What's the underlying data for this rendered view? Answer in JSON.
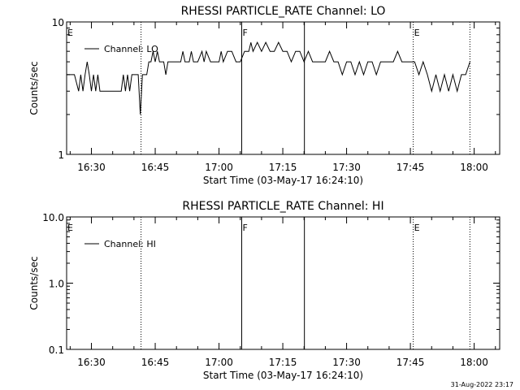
{
  "footer_stamp": "31-Aug-2022 23:17",
  "chart_data": [
    {
      "type": "line",
      "title": "RHESSI PARTICLE_RATE Channel: LO",
      "xlabel": "Start Time (03-May-17 16:24:10)",
      "ylabel": "Counts/sec",
      "yscale": "log",
      "xlim": [
        "16:24:10",
        "18:06:00"
      ],
      "ylim": [
        1,
        10
      ],
      "x_ticks": [
        "16:30",
        "16:45",
        "17:00",
        "17:15",
        "17:30",
        "17:45",
        "18:00"
      ],
      "y_ticks": [
        "1",
        "10"
      ],
      "legend": {
        "position": "top-left",
        "entries": [
          "Channel: LO"
        ]
      },
      "markers": [
        {
          "time": "16:24:10",
          "label": "E",
          "style": "dotted"
        },
        {
          "time": "16:41:40",
          "label": "",
          "style": "dotted"
        },
        {
          "time": "17:05:20",
          "label": "F",
          "style": "solid"
        },
        {
          "time": "17:20:05",
          "label": "",
          "style": "solid"
        },
        {
          "time": "17:45:40",
          "label": "E",
          "style": "dotted"
        },
        {
          "time": "17:59:00",
          "label": "",
          "style": "dotted"
        }
      ],
      "series": [
        {
          "name": "Channel: LO",
          "color": "#000000",
          "x": [
            "16:24:10",
            "16:26:00",
            "16:27:00",
            "16:27:30",
            "16:28:00",
            "16:28:30",
            "16:29:00",
            "16:29:30",
            "16:30:00",
            "16:30:30",
            "16:31:00",
            "16:31:30",
            "16:32:00",
            "16:35:00",
            "16:37:00",
            "16:37:30",
            "16:38:00",
            "16:38:30",
            "16:39:00",
            "16:39:30",
            "16:40:00",
            "16:41:00",
            "16:41:30",
            "16:42:00",
            "16:43:00",
            "16:43:30",
            "16:44:00",
            "16:44:30",
            "16:45:00",
            "16:45:30",
            "16:46:00",
            "16:47:00",
            "16:47:30",
            "16:48:00",
            "16:48:30",
            "16:50:00",
            "16:51:00",
            "16:51:30",
            "16:52:00",
            "16:53:00",
            "16:53:30",
            "16:54:00",
            "16:55:00",
            "16:56:00",
            "16:56:30",
            "16:57:00",
            "16:58:00",
            "16:59:00",
            "17:00:00",
            "17:00:30",
            "17:01:00",
            "17:02:00",
            "17:03:00",
            "17:04:00",
            "17:05:00",
            "17:06:00",
            "17:07:00",
            "17:07:30",
            "17:08:00",
            "17:09:00",
            "17:10:00",
            "17:11:00",
            "17:12:00",
            "17:13:00",
            "17:14:00",
            "17:15:00",
            "17:16:00",
            "17:17:00",
            "17:18:00",
            "17:19:00",
            "17:20:00",
            "17:21:00",
            "17:22:00",
            "17:23:00",
            "17:24:00",
            "17:25:00",
            "17:26:00",
            "17:27:00",
            "17:28:00",
            "17:29:00",
            "17:30:00",
            "17:31:00",
            "17:32:00",
            "17:33:00",
            "17:34:00",
            "17:35:00",
            "17:36:00",
            "17:37:00",
            "17:38:00",
            "17:39:00",
            "17:40:00",
            "17:41:00",
            "17:42:00",
            "17:43:00",
            "17:44:00",
            "17:45:00",
            "17:46:00",
            "17:47:00",
            "17:48:00",
            "17:49:00",
            "17:50:00",
            "17:51:00",
            "17:52:00",
            "17:53:00",
            "17:54:00",
            "17:55:00",
            "17:56:00",
            "17:57:00",
            "17:58:00",
            "17:59:00"
          ],
          "y": [
            4,
            4,
            3,
            4,
            3,
            4,
            5,
            4,
            3,
            4,
            3,
            4,
            3,
            3,
            3,
            4,
            3,
            4,
            3,
            4,
            4,
            4,
            2,
            4,
            4,
            5,
            5,
            6,
            5,
            6,
            5,
            5,
            4,
            5,
            5,
            5,
            5,
            6,
            5,
            5,
            6,
            5,
            5,
            6,
            5,
            6,
            5,
            5,
            5,
            6,
            5,
            6,
            6,
            5,
            5,
            6,
            6,
            7,
            6,
            7,
            6,
            7,
            6,
            6,
            7,
            6,
            6,
            5,
            6,
            6,
            5,
            6,
            5,
            5,
            5,
            5,
            6,
            5,
            5,
            4,
            5,
            5,
            4,
            5,
            4,
            5,
            5,
            4,
            5,
            5,
            5,
            5,
            6,
            5,
            5,
            5,
            5,
            4,
            5,
            4,
            3,
            4,
            3,
            4,
            3,
            4,
            3,
            4,
            4,
            5
          ]
        }
      ]
    },
    {
      "type": "line",
      "title": "RHESSI PARTICLE_RATE Channel: HI",
      "xlabel": "Start Time (03-May-17 16:24:10)",
      "ylabel": "Counts/sec",
      "yscale": "log",
      "xlim": [
        "16:24:10",
        "18:06:00"
      ],
      "ylim": [
        0.1,
        10
      ],
      "x_ticks": [
        "16:30",
        "16:45",
        "17:00",
        "17:15",
        "17:30",
        "17:45",
        "18:00"
      ],
      "y_ticks": [
        "0.1",
        "1.0",
        "10.0"
      ],
      "legend": {
        "position": "top-left",
        "entries": [
          "Channel: HI"
        ]
      },
      "markers": [
        {
          "time": "16:24:10",
          "label": "E",
          "style": "dotted"
        },
        {
          "time": "16:41:40",
          "label": "",
          "style": "dotted"
        },
        {
          "time": "17:05:20",
          "label": "F",
          "style": "solid"
        },
        {
          "time": "17:20:05",
          "label": "",
          "style": "solid"
        },
        {
          "time": "17:45:40",
          "label": "E",
          "style": "dotted"
        },
        {
          "time": "17:59:00",
          "label": "",
          "style": "dotted"
        }
      ],
      "series": [
        {
          "name": "Channel: HI",
          "color": "#000000",
          "x": [],
          "y": []
        }
      ]
    }
  ]
}
